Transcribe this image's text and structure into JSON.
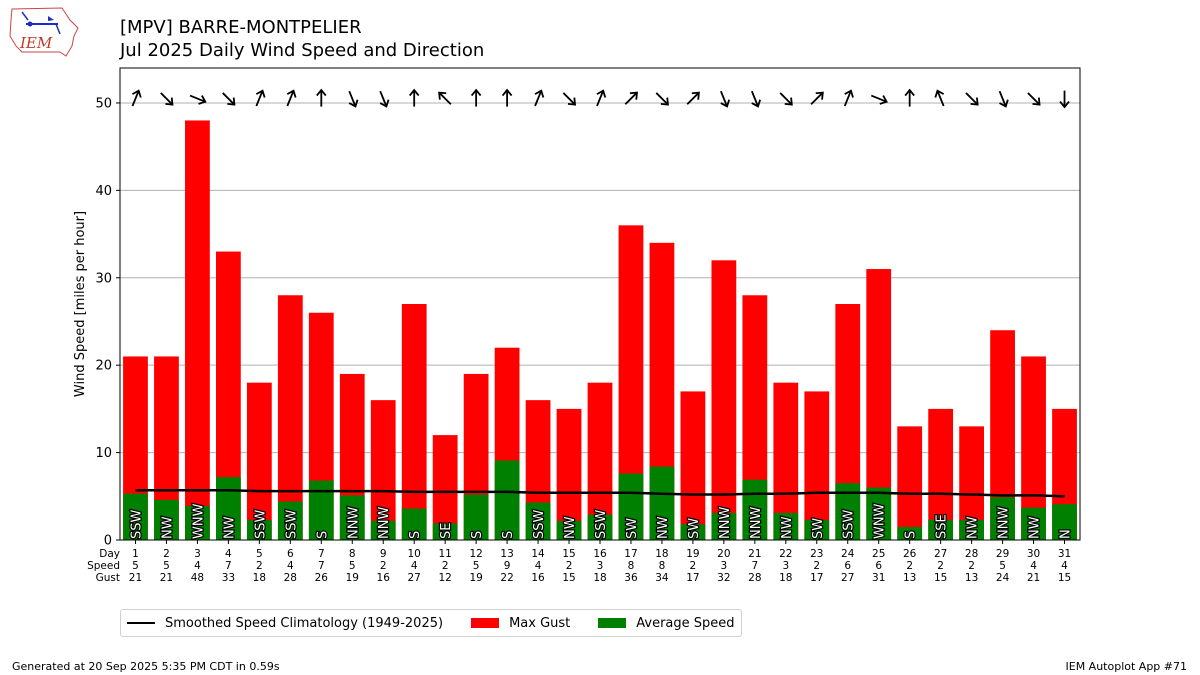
{
  "header": {
    "logo_text": "IEM",
    "title_line1": "[MPV] BARRE-MONTPELIER",
    "title_line2": "Jul 2025 Daily Wind Speed and Direction"
  },
  "footer": {
    "generated": "Generated at 20 Sep 2025 5:35 PM CDT in 0.59s",
    "app": "IEM Autoplot App #71"
  },
  "colors": {
    "gust": "#ff0000",
    "speed": "#008000",
    "climatology": "#000000",
    "grid": "#b0b0b0"
  },
  "chart_data": {
    "type": "bar",
    "title": "[MPV] BARRE-MONTPELIER\nJul 2025 Daily Wind Speed and Direction",
    "ylabel": "Wind Speed [miles per hour]",
    "ylim": [
      0,
      54
    ],
    "yticks": [
      0,
      10,
      20,
      30,
      40,
      50
    ],
    "grid": "horizontal",
    "row_labels": [
      "Day",
      "Speed",
      "Gust"
    ],
    "days": [
      1,
      2,
      3,
      4,
      5,
      6,
      7,
      8,
      9,
      10,
      11,
      12,
      13,
      14,
      15,
      16,
      17,
      18,
      19,
      20,
      21,
      22,
      23,
      24,
      25,
      26,
      27,
      28,
      29,
      30,
      31
    ],
    "speed_labels": [
      5,
      5,
      4,
      7,
      2,
      4,
      7,
      5,
      2,
      4,
      2,
      5,
      9,
      4,
      2,
      3,
      8,
      8,
      2,
      3,
      7,
      3,
      2,
      6,
      6,
      2,
      2,
      2,
      5,
      4,
      4
    ],
    "gust_labels": [
      21,
      21,
      48,
      33,
      18,
      28,
      26,
      19,
      16,
      27,
      12,
      19,
      22,
      16,
      15,
      18,
      36,
      34,
      17,
      32,
      28,
      18,
      17,
      27,
      31,
      13,
      15,
      13,
      24,
      21,
      15
    ],
    "avg_speed": [
      5.3,
      4.6,
      3.9,
      7.2,
      2.3,
      4.4,
      6.8,
      5.1,
      2.2,
      3.6,
      1.9,
      5.2,
      9.1,
      4.3,
      2.2,
      2.9,
      7.6,
      8.4,
      1.8,
      3.1,
      6.9,
      3.1,
      2.3,
      6.5,
      6.0,
      1.5,
      2.3,
      2.3,
      4.9,
      3.7,
      4.1
    ],
    "direction_labels": [
      "SSW",
      "NW",
      "WNW",
      "NW",
      "SSW",
      "SSW",
      "S",
      "NNW",
      "NNW",
      "S",
      "SE",
      "S",
      "S",
      "SSW",
      "NW",
      "SSW",
      "SW",
      "NW",
      "SW",
      "NNW",
      "NNW",
      "NW",
      "SW",
      "SSW",
      "WNW",
      "S",
      "SSE",
      "NW",
      "NNW",
      "NW",
      "N"
    ],
    "arrow_directions": [
      202,
      315,
      292,
      315,
      202,
      202,
      180,
      338,
      338,
      180,
      135,
      180,
      180,
      202,
      315,
      202,
      225,
      315,
      225,
      338,
      338,
      315,
      225,
      202,
      292,
      180,
      158,
      315,
      338,
      315,
      0
    ],
    "climatology": [
      5.7,
      5.7,
      5.7,
      5.7,
      5.6,
      5.6,
      5.6,
      5.6,
      5.6,
      5.5,
      5.5,
      5.5,
      5.5,
      5.4,
      5.4,
      5.4,
      5.4,
      5.3,
      5.2,
      5.2,
      5.3,
      5.3,
      5.4,
      5.4,
      5.4,
      5.3,
      5.3,
      5.2,
      5.1,
      5.1,
      5.0
    ],
    "series": [
      {
        "name": "Max Gust",
        "values": [
          21,
          21,
          48,
          33,
          18,
          28,
          26,
          19,
          16,
          27,
          12,
          19,
          22,
          16,
          15,
          18,
          36,
          34,
          17,
          32,
          28,
          18,
          17,
          27,
          31,
          13,
          15,
          13,
          24,
          21,
          15
        ]
      },
      {
        "name": "Average Speed",
        "values": [
          5.3,
          4.6,
          3.9,
          7.2,
          2.3,
          4.4,
          6.8,
          5.1,
          2.2,
          3.6,
          1.9,
          5.2,
          9.1,
          4.3,
          2.2,
          2.9,
          7.6,
          8.4,
          1.8,
          3.1,
          6.9,
          3.1,
          2.3,
          6.5,
          6.0,
          1.5,
          2.3,
          2.3,
          4.9,
          3.7,
          4.1
        ]
      },
      {
        "name": "Smoothed Speed Climatology (1949-2025)",
        "values": [
          5.7,
          5.7,
          5.7,
          5.7,
          5.6,
          5.6,
          5.6,
          5.6,
          5.6,
          5.5,
          5.5,
          5.5,
          5.5,
          5.4,
          5.4,
          5.4,
          5.4,
          5.3,
          5.2,
          5.2,
          5.3,
          5.3,
          5.4,
          5.4,
          5.4,
          5.3,
          5.3,
          5.2,
          5.1,
          5.1,
          5.0
        ]
      }
    ],
    "legend": {
      "placement": "bottom-left",
      "items": [
        "Smoothed Speed Climatology (1949-2025)",
        "Max Gust",
        "Average Speed"
      ]
    }
  }
}
